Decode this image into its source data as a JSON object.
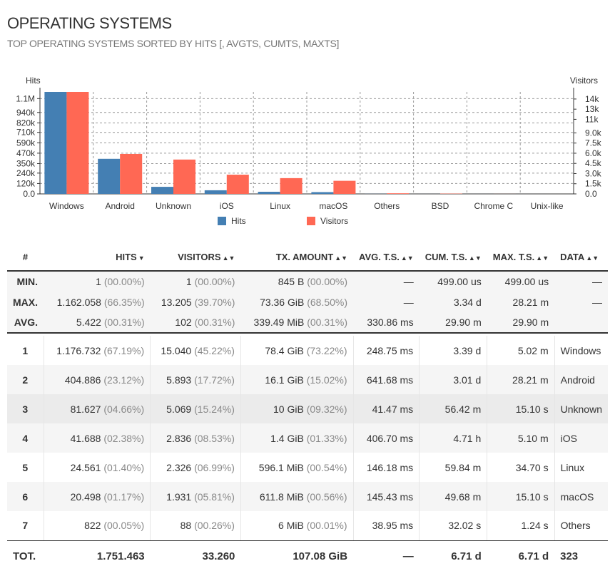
{
  "panel": {
    "title": "OPERATING SYSTEMS",
    "subtitle": "TOP OPERATING SYSTEMS SORTED BY HITS [, AVGTS, CUMTS, MAXTS]"
  },
  "chart_data": {
    "type": "bar",
    "categories": [
      "Windows",
      "Android",
      "Unknown",
      "iOS",
      "Linux",
      "macOS",
      "Others",
      "BSD",
      "Chrome C",
      "Unix-like"
    ],
    "series": [
      {
        "name": "Hits",
        "axis": "left",
        "color": "#447fb3",
        "values": [
          1176732,
          404886,
          81627,
          41688,
          24561,
          20498,
          822,
          200,
          50,
          10
        ]
      },
      {
        "name": "Visitors",
        "axis": "right",
        "color": "#ff6854",
        "values": [
          15040,
          5893,
          5069,
          2836,
          2326,
          1931,
          88,
          40,
          5,
          1
        ]
      }
    ],
    "ylabel_left": "Hits",
    "ylabel_right": "Visitors",
    "ylim_left": [
      0,
      1176732
    ],
    "ylim_right": [
      0,
      15040
    ],
    "yticks_left": [
      "1.1M",
      "940k",
      "820k",
      "710k",
      "590k",
      "470k",
      "350k",
      "240k",
      "120k",
      "0.0"
    ],
    "yticks_left_values": [
      1100000,
      940000,
      820000,
      710000,
      590000,
      470000,
      350000,
      240000,
      120000,
      0
    ],
    "yticks_right": [
      "14k",
      "13k",
      "11k",
      "9.0k",
      "7.5k",
      "6.0k",
      "4.5k",
      "3.0k",
      "1.5k",
      "0.0"
    ],
    "yticks_right_values": [
      14000,
      12500,
      11000,
      9000,
      7500,
      6000,
      4500,
      3000,
      1500,
      0
    ],
    "grid": true,
    "legend": "bottom"
  },
  "table": {
    "headers": {
      "num": "#",
      "hits": "HITS",
      "visitors": "VISITORS",
      "tx": "TX. AMOUNT",
      "avg": "AVG. T.S.",
      "cum": "CUM. T.S.",
      "max": "MAX. T.S.",
      "data": "DATA"
    },
    "stats": [
      {
        "label": "MIN.",
        "hits": "1",
        "hits_pct": "(00.00%)",
        "visitors": "1",
        "visitors_pct": "(00.00%)",
        "tx": "845 B",
        "tx_pct": "(00.00%)",
        "avg": "—",
        "cum": "499.00 us",
        "max": "499.00 us",
        "data": "—"
      },
      {
        "label": "MAX.",
        "hits": "1.162.058",
        "hits_pct": "(66.35%)",
        "visitors": "13.205",
        "visitors_pct": "(39.70%)",
        "tx": "73.36 GiB",
        "tx_pct": "(68.50%)",
        "avg": "—",
        "cum": "3.34 d",
        "max": "28.21 m",
        "data": "—"
      },
      {
        "label": "AVG.",
        "hits": "5.422",
        "hits_pct": "(00.31%)",
        "visitors": "102",
        "visitors_pct": "(00.31%)",
        "tx": "339.49 MiB",
        "tx_pct": "(00.31%)",
        "avg": "330.86 ms",
        "cum": "29.90 m",
        "max": "29.90 m",
        "data": ""
      }
    ],
    "rows": [
      {
        "num": "1",
        "hits": "1.176.732",
        "hits_pct": "(67.19%)",
        "visitors": "15.040",
        "visitors_pct": "(45.22%)",
        "tx": "78.4 GiB",
        "tx_pct": "(73.22%)",
        "avg": "248.75 ms",
        "cum": "3.39 d",
        "max": "5.02 m",
        "data": "Windows"
      },
      {
        "num": "2",
        "hits": "404.886",
        "hits_pct": "(23.12%)",
        "visitors": "5.893",
        "visitors_pct": "(17.72%)",
        "tx": "16.1 GiB",
        "tx_pct": "(15.02%)",
        "avg": "641.68 ms",
        "cum": "3.01 d",
        "max": "28.21 m",
        "data": "Android"
      },
      {
        "num": "3",
        "hits": "81.627",
        "hits_pct": "(04.66%)",
        "visitors": "5.069",
        "visitors_pct": "(15.24%)",
        "tx": "10 GiB",
        "tx_pct": "(09.32%)",
        "avg": "41.47 ms",
        "cum": "56.42 m",
        "max": "15.10 s",
        "data": "Unknown"
      },
      {
        "num": "4",
        "hits": "41.688",
        "hits_pct": "(02.38%)",
        "visitors": "2.836",
        "visitors_pct": "(08.53%)",
        "tx": "1.4 GiB",
        "tx_pct": "(01.33%)",
        "avg": "406.70 ms",
        "cum": "4.71 h",
        "max": "5.10 m",
        "data": "iOS"
      },
      {
        "num": "5",
        "hits": "24.561",
        "hits_pct": "(01.40%)",
        "visitors": "2.326",
        "visitors_pct": "(06.99%)",
        "tx": "596.1 MiB",
        "tx_pct": "(00.54%)",
        "avg": "146.18 ms",
        "cum": "59.84 m",
        "max": "34.70 s",
        "data": "Linux"
      },
      {
        "num": "6",
        "hits": "20.498",
        "hits_pct": "(01.17%)",
        "visitors": "1.931",
        "visitors_pct": "(05.81%)",
        "tx": "611.8 MiB",
        "tx_pct": "(00.56%)",
        "avg": "145.43 ms",
        "cum": "49.68 m",
        "max": "15.10 s",
        "data": "macOS"
      },
      {
        "num": "7",
        "hits": "822",
        "hits_pct": "(00.05%)",
        "visitors": "88",
        "visitors_pct": "(00.26%)",
        "tx": "6 MiB",
        "tx_pct": "(00.01%)",
        "avg": "38.95 ms",
        "cum": "32.02 s",
        "max": "1.24 s",
        "data": "Others"
      }
    ],
    "total": {
      "label": "TOT.",
      "hits": "1.751.463",
      "visitors": "33.260",
      "tx": "107.08 GiB",
      "avg": "—",
      "cum": "6.71 d",
      "max": "6.71 d",
      "data": "323"
    },
    "sort_icons": {
      "desc": "▼",
      "both": "▲▼"
    }
  }
}
